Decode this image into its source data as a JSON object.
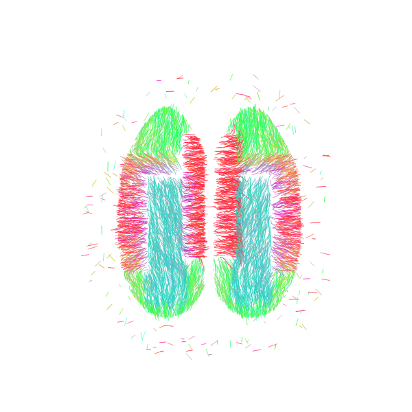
{
  "scene": {
    "kind": "tractography-render",
    "view": "axial",
    "background_color": "#ffffff",
    "direction_colors": {
      "left_right": "#e02020",
      "anterior_posterior": "#30c030",
      "superior_inferior": "#2a2ad0"
    }
  }
}
